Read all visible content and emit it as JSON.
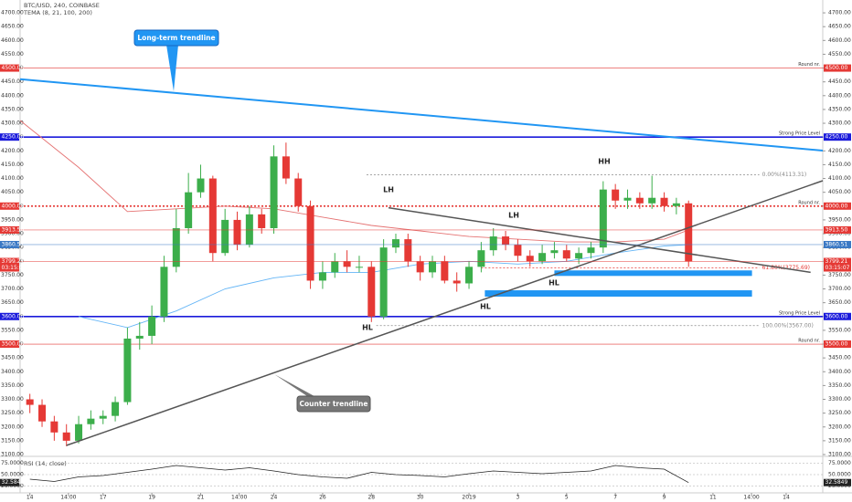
{
  "chart_data": {
    "type": "candlestick",
    "title": "BTC/USD, 240, COINBASE",
    "subtitle": "TEMA (8, 21, 100, 200)",
    "up_color": "#3cae4b",
    "down_color": "#e53935",
    "x": [
      0,
      0.5,
      1,
      1.5,
      2,
      2.5,
      3,
      3.5,
      4,
      4.5,
      5,
      5.5,
      6,
      6.5,
      7,
      7.5,
      8,
      8.5,
      9,
      9.5,
      10,
      10.5,
      11,
      11.5,
      12,
      12.5,
      13,
      13.5,
      14,
      14.5,
      15,
      15.5,
      16,
      16.5,
      17,
      17.5,
      18,
      18.5,
      19,
      19.5,
      20,
      20.5,
      21,
      21.5,
      22,
      22.5,
      23,
      23.5,
      24,
      24.5,
      25,
      25.5,
      26,
      26.5,
      27
    ],
    "open": [
      3300,
      3280,
      3220,
      3180,
      3150,
      3210,
      3230,
      3240,
      3290,
      3520,
      3530,
      3600,
      3780,
      3920,
      4050,
      4100,
      3830,
      3950,
      3860,
      3970,
      3920,
      4180,
      4100,
      4000,
      3730,
      3760,
      3800,
      3780,
      3780,
      3600,
      3850,
      3880,
      3800,
      3760,
      3800,
      3730,
      3720,
      3780,
      3840,
      3890,
      3860,
      3820,
      3800,
      3830,
      3840,
      3810,
      3830,
      3850,
      4060,
      4020,
      4030,
      4010,
      4030,
      4000,
      4010
    ],
    "high": [
      3320,
      3300,
      3240,
      3210,
      3240,
      3260,
      3260,
      3310,
      3560,
      3580,
      3640,
      3820,
      3990,
      4120,
      4150,
      4110,
      3990,
      3980,
      4000,
      3990,
      4220,
      4230,
      4120,
      4020,
      3800,
      3830,
      3840,
      3820,
      3800,
      3880,
      3900,
      3900,
      3820,
      3820,
      3820,
      3760,
      3800,
      3870,
      3920,
      3910,
      3880,
      3840,
      3860,
      3870,
      3860,
      3850,
      3870,
      4090,
      4080,
      4060,
      4050,
      4110,
      4050,
      4030,
      4020
    ],
    "low": [
      3250,
      3200,
      3150,
      3130,
      3140,
      3190,
      3210,
      3220,
      3280,
      3480,
      3500,
      3580,
      3760,
      3900,
      4030,
      3800,
      3820,
      3840,
      3850,
      3900,
      3900,
      4080,
      3980,
      3700,
      3700,
      3740,
      3760,
      3760,
      3580,
      3590,
      3830,
      3780,
      3730,
      3740,
      3720,
      3690,
      3700,
      3760,
      3820,
      3840,
      3800,
      3780,
      3790,
      3810,
      3800,
      3790,
      3810,
      3830,
      3990,
      3990,
      3990,
      3990,
      3980,
      3970,
      3780
    ],
    "close": [
      3280,
      3220,
      3180,
      3150,
      3210,
      3230,
      3240,
      3290,
      3520,
      3530,
      3600,
      3780,
      3920,
      4050,
      4100,
      3830,
      3950,
      3860,
      3970,
      3920,
      4180,
      4100,
      4000,
      3730,
      3760,
      3800,
      3780,
      3780,
      3600,
      3850,
      3880,
      3800,
      3760,
      3800,
      3730,
      3720,
      3780,
      3840,
      3890,
      3860,
      3820,
      3800,
      3830,
      3840,
      3810,
      3830,
      3850,
      4060,
      4020,
      4030,
      4010,
      4030,
      4000,
      4010,
      3800
    ],
    "xlim": [
      -0.4,
      32.5
    ],
    "xticks": [
      {
        "value": 0,
        "label": "14"
      },
      {
        "value": 1.58,
        "label": "14:00"
      },
      {
        "value": 3,
        "label": "17"
      },
      {
        "value": 5,
        "label": "19"
      },
      {
        "value": 7,
        "label": "21"
      },
      {
        "value": 8.58,
        "label": "14:00"
      },
      {
        "value": 10,
        "label": "24"
      },
      {
        "value": 12,
        "label": "26"
      },
      {
        "value": 14,
        "label": "28"
      },
      {
        "value": 16,
        "label": "30"
      },
      {
        "value": 18,
        "label": "2019"
      },
      {
        "value": 20,
        "label": "3"
      },
      {
        "value": 22,
        "label": "5"
      },
      {
        "value": 24,
        "label": "7"
      },
      {
        "value": 26,
        "label": "9"
      },
      {
        "value": 28,
        "label": "11"
      },
      {
        "value": 29.58,
        "label": "14:00"
      },
      {
        "value": 31,
        "label": "14"
      }
    ],
    "ylim": [
      3100,
      4730
    ],
    "yticks": [
      {
        "value": 4700,
        "label": "4700.00"
      },
      {
        "value": 4650,
        "label": "4650.00"
      },
      {
        "value": 4600,
        "label": "4600.00"
      },
      {
        "value": 4550,
        "label": "4550.00"
      },
      {
        "value": 4500,
        "label": "4500.00"
      },
      {
        "value": 4450,
        "label": "4450.00"
      },
      {
        "value": 4400,
        "label": "4400.00"
      },
      {
        "value": 4350,
        "label": "4350.00"
      },
      {
        "value": 4300,
        "label": "4300.00"
      },
      {
        "value": 4250,
        "label": "4250.00"
      },
      {
        "value": 4200,
        "label": "4200.00"
      },
      {
        "value": 4150,
        "label": "4150.00"
      },
      {
        "value": 4100,
        "label": "4100.00"
      },
      {
        "value": 4050,
        "label": "4050.00"
      },
      {
        "value": 4000,
        "label": "4000.00"
      },
      {
        "value": 3950,
        "label": "3950.00"
      },
      {
        "value": 3900,
        "label": "3900.00"
      },
      {
        "value": 3850,
        "label": "3850.00"
      },
      {
        "value": 3800,
        "label": "3800.00"
      },
      {
        "value": 3750,
        "label": "3750.00"
      },
      {
        "value": 3700,
        "label": "3700.00"
      },
      {
        "value": 3650,
        "label": "3650.00"
      },
      {
        "value": 3600,
        "label": "3600.00"
      },
      {
        "value": 3550,
        "label": "3550.00"
      },
      {
        "value": 3500,
        "label": "3500.00"
      },
      {
        "value": 3450,
        "label": "3450.00"
      },
      {
        "value": 3400,
        "label": "3400.00"
      },
      {
        "value": 3350,
        "label": "3350.00"
      },
      {
        "value": 3300,
        "label": "3300.00"
      },
      {
        "value": 3250,
        "label": "3250.00"
      },
      {
        "value": 3200,
        "label": "3200.00"
      },
      {
        "value": 3150,
        "label": "3150.00"
      },
      {
        "value": 3100,
        "label": "3100.00"
      }
    ],
    "levels": [
      {
        "value": 4500,
        "label": "4500.00",
        "note": "Round nr.",
        "color": "#e53935",
        "style": "thin"
      },
      {
        "value": 4250,
        "label": "4250.00",
        "note": "Strong Price Level",
        "color": "#1a1adb",
        "style": "thick"
      },
      {
        "value": 4000,
        "label": "4000.00",
        "note": "Round nr.",
        "color": "#e53935",
        "style": "dotted"
      },
      {
        "value": 3600,
        "label": "3600.00",
        "note": "Strong Price Level",
        "color": "#1a1adb",
        "style": "thick"
      },
      {
        "value": 3500,
        "label": "3500.00",
        "note": "Round nr.",
        "color": "#e53935",
        "style": "thin"
      }
    ],
    "price_labels": [
      {
        "value": 3913.5,
        "label": "3913.50",
        "color": "#e53935"
      },
      {
        "value": 3860.51,
        "label": "3860.51",
        "color": "#3a78c4"
      },
      {
        "value": 3799.21,
        "label": "3799.21",
        "time": "03:15:07",
        "color": "#e53935"
      }
    ],
    "trendlines": [
      {
        "name": "Long-term trendline",
        "x": [
          -0.4,
          32.5
        ],
        "values": [
          4460,
          4201
        ],
        "color": "#2196f3",
        "width": 2
      },
      {
        "name": "Counter trendline",
        "x": [
          1.5,
          32.5
        ],
        "values": [
          3133,
          4092
        ],
        "color": "#555",
        "width": 1.5
      },
      {
        "x": [
          14.7,
          32
        ],
        "values": [
          3994,
          3760
        ],
        "color": "#555",
        "width": 1.5
      }
    ],
    "fib": [
      {
        "value": 4113.31,
        "label": "0.00%(4113.31)",
        "x": [
          13.8,
          29.9
        ],
        "color": "#888"
      },
      {
        "value": 3775.69,
        "label": "61.80%(3775.69)",
        "x": [
          18.5,
          29.9
        ],
        "color": "#e53935"
      },
      {
        "value": 3567,
        "label": "100.00%(3567.00)",
        "x": [
          14.2,
          29.9
        ],
        "color": "#888"
      }
    ],
    "zones": [
      {
        "x": [
          21.5,
          29.6
        ],
        "values": [
          3747,
          3767
        ],
        "color": "#2196f3"
      },
      {
        "x": [
          18.65,
          29.6
        ],
        "values": [
          3672,
          3695
        ],
        "color": "#2196f3"
      }
    ],
    "annotations": [
      "LH",
      "LH",
      "HH",
      "HL",
      "HL",
      "HL"
    ],
    "moving_averages": [
      {
        "color": "#e57373",
        "x": [
          -0.4,
          2,
          4,
          6,
          8,
          10,
          12,
          14,
          16,
          18,
          20,
          22,
          24,
          26,
          27
        ],
        "values": [
          4310,
          4140,
          3980,
          3990,
          4000,
          3990,
          3960,
          3930,
          3910,
          3890,
          3880,
          3870,
          3870,
          3880,
          3913.5
        ]
      },
      {
        "color": "#64b5f6",
        "x": [
          2,
          4,
          6,
          8,
          10,
          12,
          14,
          16,
          18,
          20,
          22,
          24,
          26,
          27
        ],
        "values": [
          3600,
          3560,
          3620,
          3700,
          3740,
          3760,
          3760,
          3790,
          3800,
          3790,
          3800,
          3830,
          3855,
          3860.51
        ]
      }
    ],
    "rsi": {
      "title": "RSI (14, close)",
      "color": "#222",
      "ylim": [
        10,
        90
      ],
      "yticks": [
        {
          "value": 75,
          "label": "75.0000"
        },
        {
          "value": 50,
          "label": "50.0000"
        },
        {
          "value": 25,
          "label": "25.0000"
        }
      ],
      "x": [
        0,
        1,
        2,
        3,
        4,
        5,
        6,
        7,
        8,
        9,
        10,
        11,
        12,
        13,
        14,
        15,
        16,
        17,
        18,
        19,
        20,
        21,
        22,
        23,
        24,
        25,
        26,
        27
      ],
      "values": [
        40,
        35,
        45,
        48,
        55,
        62,
        70,
        65,
        60,
        65,
        58,
        50,
        45,
        42,
        55,
        50,
        48,
        45,
        52,
        58,
        55,
        52,
        55,
        58,
        70,
        65,
        62,
        32.5849
      ]
    }
  }
}
